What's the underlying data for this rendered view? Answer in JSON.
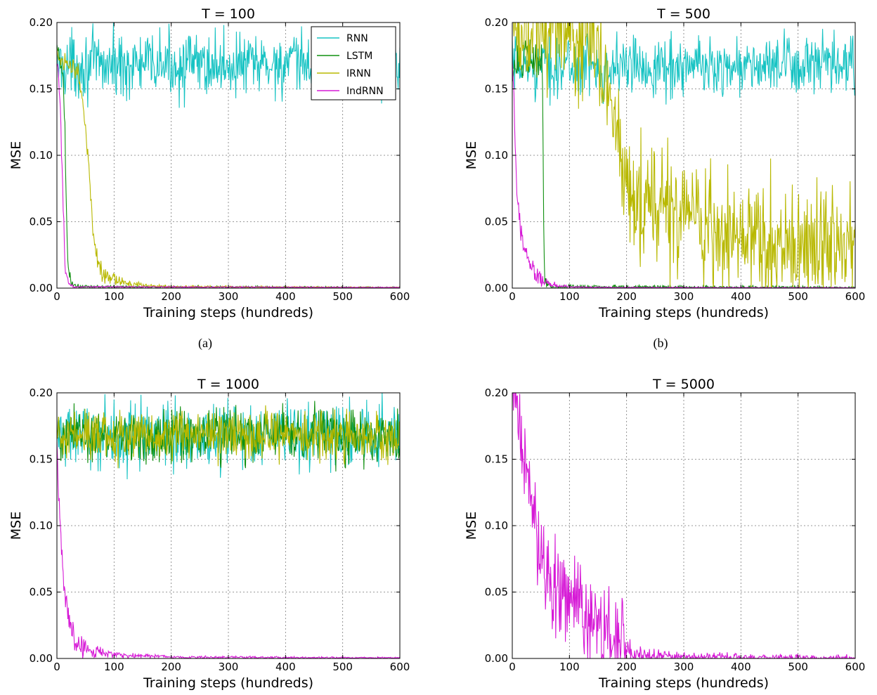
{
  "figure": {
    "captions": [
      "(a)",
      "(b)"
    ]
  },
  "legend": {
    "entries": [
      {
        "name": "RNN",
        "color": "#17c3c3"
      },
      {
        "name": "LSTM",
        "color": "#109010"
      },
      {
        "name": "IRNN",
        "color": "#b8b800"
      },
      {
        "name": "IndRNN",
        "color": "#d61ad6"
      }
    ]
  },
  "chart_data": [
    {
      "type": "line",
      "title": "T = 100",
      "xlabel": "Training steps (hundreds)",
      "ylabel": "MSE",
      "xlim": [
        0,
        600
      ],
      "ylim": [
        0,
        0.2
      ],
      "xticks": [
        0,
        100,
        200,
        300,
        400,
        500,
        600
      ],
      "yticks": [
        0.0,
        0.05,
        0.1,
        0.15,
        0.2
      ],
      "ytick_labels": [
        "0.00",
        "0.05",
        "0.10",
        "0.15",
        "0.20"
      ],
      "grid": true,
      "legend": "top-right",
      "series": [
        {
          "name": "RNN",
          "color": "#17c3c3",
          "noise": 0.012,
          "x": [
            0,
            600
          ],
          "y": [
            0.168,
            0.168
          ]
        },
        {
          "name": "LSTM",
          "color": "#109010",
          "noise": 0.006,
          "x": [
            0,
            5,
            10,
            14,
            17,
            20,
            25,
            30,
            40,
            600
          ],
          "y": [
            0.175,
            0.172,
            0.16,
            0.12,
            0.05,
            0.012,
            0.004,
            0.002,
            0.001,
            0.0005
          ]
        },
        {
          "name": "IRNN",
          "color": "#b8b800",
          "noise": 0.004,
          "x": [
            0,
            10,
            20,
            30,
            38,
            45,
            50,
            55,
            60,
            65,
            70,
            80,
            90,
            100,
            120,
            150,
            200,
            600
          ],
          "y": [
            0.175,
            0.172,
            0.17,
            0.168,
            0.16,
            0.14,
            0.12,
            0.1,
            0.06,
            0.03,
            0.02,
            0.012,
            0.009,
            0.006,
            0.004,
            0.002,
            0.001,
            0.0005
          ]
        },
        {
          "name": "IndRNN",
          "color": "#d61ad6",
          "noise": 0.003,
          "x": [
            0,
            3,
            6,
            10,
            13,
            16,
            20,
            25,
            30,
            600
          ],
          "y": [
            0.17,
            0.16,
            0.13,
            0.08,
            0.03,
            0.01,
            0.004,
            0.002,
            0.001,
            0.0005
          ]
        }
      ]
    },
    {
      "type": "line",
      "title": "T = 500",
      "xlabel": "Training steps (hundreds)",
      "ylabel": "MSE",
      "xlim": [
        0,
        600
      ],
      "ylim": [
        0,
        0.2
      ],
      "xticks": [
        0,
        100,
        200,
        300,
        400,
        500,
        600
      ],
      "yticks": [
        0.0,
        0.05,
        0.1,
        0.15,
        0.2
      ],
      "ytick_labels": [
        "0.00",
        "0.05",
        "0.10",
        "0.15",
        "0.20"
      ],
      "grid": true,
      "series": [
        {
          "name": "RNN",
          "color": "#17c3c3",
          "noise": 0.011,
          "x": [
            0,
            600
          ],
          "y": [
            0.167,
            0.167
          ]
        },
        {
          "name": "LSTM",
          "color": "#109010",
          "noise": 0.008,
          "x": [
            0,
            52,
            54,
            56,
            60,
            70,
            600
          ],
          "y": [
            0.17,
            0.17,
            0.1,
            0.01,
            0.003,
            0.001,
            0.0005
          ]
        },
        {
          "name": "IRNN",
          "color": "#b8b800",
          "noise": 0.022,
          "x": [
            0,
            50,
            100,
            150,
            170,
            185,
            195,
            210,
            250,
            300,
            350,
            400,
            500,
            600
          ],
          "y": [
            0.2,
            0.2,
            0.19,
            0.175,
            0.15,
            0.12,
            0.085,
            0.075,
            0.06,
            0.048,
            0.04,
            0.036,
            0.033,
            0.031
          ]
        },
        {
          "name": "IndRNN",
          "color": "#d61ad6",
          "noise": 0.004,
          "x": [
            0,
            3,
            6,
            10,
            15,
            20,
            30,
            40,
            60,
            80,
            100,
            150,
            600
          ],
          "y": [
            0.17,
            0.14,
            0.09,
            0.06,
            0.04,
            0.03,
            0.02,
            0.01,
            0.004,
            0.002,
            0.001,
            0.0005,
            0.0003
          ]
        }
      ]
    },
    {
      "type": "line",
      "title": "T = 1000",
      "xlabel": "Training steps (hundreds)",
      "ylabel": "MSE",
      "xlim": [
        0,
        600
      ],
      "ylim": [
        0,
        0.2
      ],
      "xticks": [
        0,
        100,
        200,
        300,
        400,
        500,
        600
      ],
      "yticks": [
        0.0,
        0.05,
        0.1,
        0.15,
        0.2
      ],
      "ytick_labels": [
        "0.00",
        "0.05",
        "0.10",
        "0.15",
        "0.20"
      ],
      "grid": true,
      "series": [
        {
          "name": "RNN",
          "color": "#17c3c3",
          "noise": 0.012,
          "x": [
            0,
            600
          ],
          "y": [
            0.168,
            0.168
          ]
        },
        {
          "name": "LSTM",
          "color": "#109010",
          "noise": 0.01,
          "x": [
            0,
            600
          ],
          "y": [
            0.168,
            0.168
          ]
        },
        {
          "name": "IRNN",
          "color": "#b8b800",
          "noise": 0.009,
          "x": [
            0,
            600
          ],
          "y": [
            0.168,
            0.168
          ]
        },
        {
          "name": "IndRNN",
          "color": "#d61ad6",
          "noise": 0.005,
          "x": [
            0,
            3,
            6,
            10,
            15,
            20,
            25,
            30,
            40,
            60,
            80,
            100,
            150,
            200,
            600
          ],
          "y": [
            0.17,
            0.12,
            0.09,
            0.07,
            0.05,
            0.03,
            0.02,
            0.015,
            0.01,
            0.006,
            0.004,
            0.003,
            0.002,
            0.001,
            0.0005
          ]
        }
      ]
    },
    {
      "type": "line",
      "title": "T = 5000",
      "xlabel": "Training steps (hundreds)",
      "ylabel": "MSE",
      "xlim": [
        0,
        600
      ],
      "ylim": [
        0,
        0.2
      ],
      "xticks": [
        0,
        100,
        200,
        300,
        400,
        500,
        600
      ],
      "yticks": [
        0.0,
        0.05,
        0.1,
        0.15,
        0.2
      ],
      "ytick_labels": [
        "0.00",
        "0.05",
        "0.10",
        "0.15",
        "0.20"
      ],
      "grid": true,
      "series": [
        {
          "name": "IndRNN",
          "color": "#d61ad6",
          "noise": 0.018,
          "x": [
            0,
            10,
            20,
            30,
            40,
            50,
            60,
            80,
            100,
            120,
            150,
            180,
            195,
            200,
            220,
            300,
            600
          ],
          "y": [
            0.19,
            0.18,
            0.16,
            0.12,
            0.1,
            0.08,
            0.065,
            0.055,
            0.045,
            0.035,
            0.025,
            0.015,
            0.01,
            0.003,
            0.002,
            0.001,
            0.0005
          ]
        }
      ]
    }
  ]
}
